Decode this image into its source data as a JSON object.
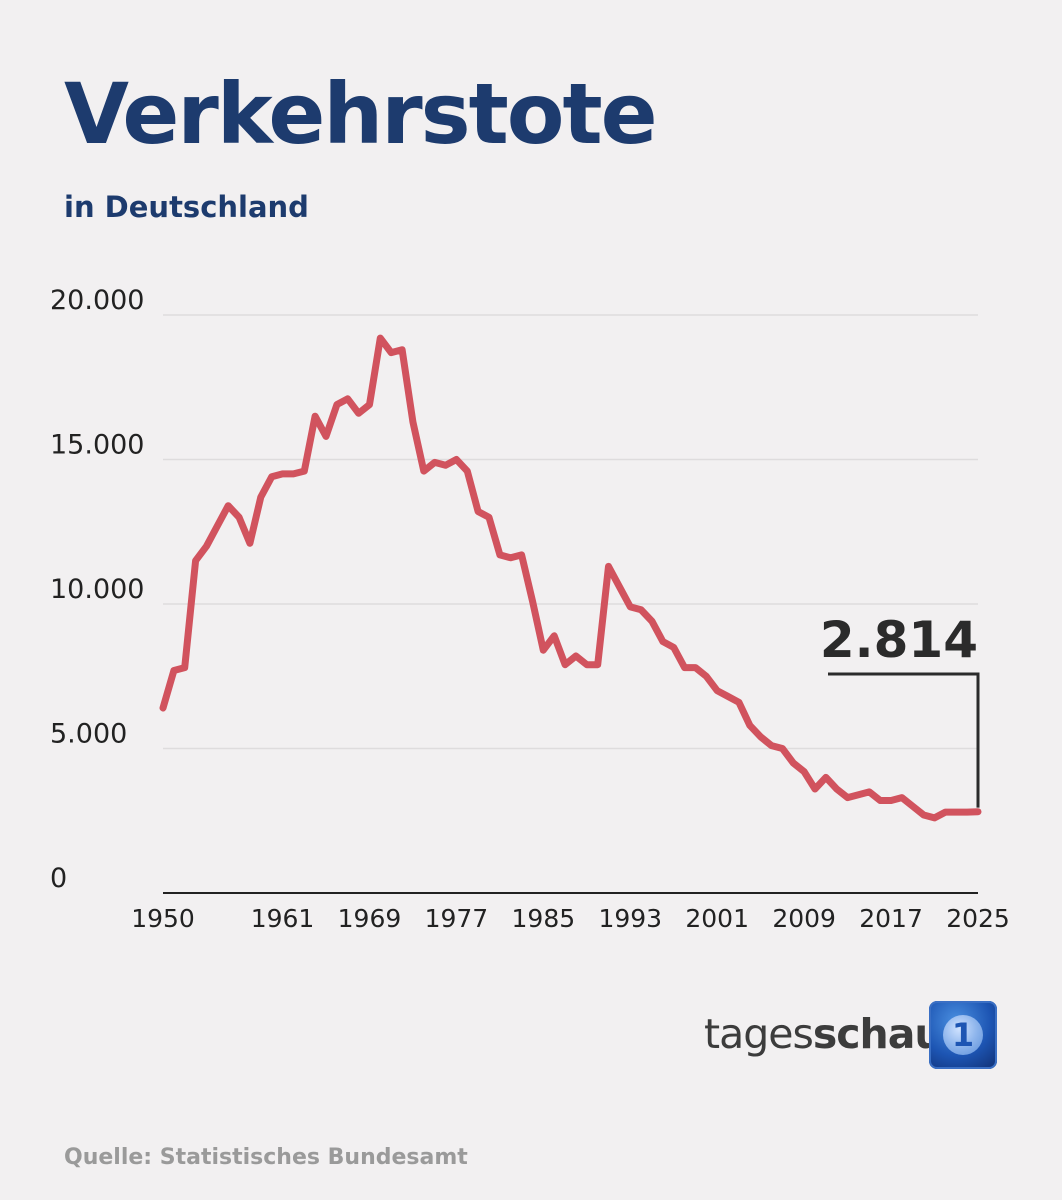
{
  "header": {
    "title": "Verkehrstote",
    "subtitle": "in Deutschland"
  },
  "colors": {
    "line": "#d1535e",
    "title": "#1d3b6e",
    "axis": "#222222",
    "grid": "#dedcdd",
    "annotation": "#2b2b2b"
  },
  "chart_data": {
    "type": "line",
    "title": "Verkehrstote",
    "subtitle": "in Deutschland",
    "xlabel": "",
    "ylabel": "",
    "xlim": [
      1950,
      2025
    ],
    "ylim": [
      0,
      20000
    ],
    "x_ticks": [
      1950,
      1961,
      1969,
      1977,
      1985,
      1993,
      2001,
      2009,
      2017,
      2025
    ],
    "y_ticks": [
      0,
      5000,
      10000,
      15000,
      20000
    ],
    "y_tick_labels": [
      "0",
      "5.000",
      "10.000",
      "15.000",
      "20.000"
    ],
    "grid": "horizontal",
    "x": [
      1950,
      1951,
      1952,
      1953,
      1954,
      1955,
      1956,
      1957,
      1958,
      1959,
      1960,
      1961,
      1962,
      1963,
      1964,
      1965,
      1966,
      1967,
      1968,
      1969,
      1970,
      1971,
      1972,
      1973,
      1974,
      1975,
      1976,
      1977,
      1978,
      1979,
      1980,
      1981,
      1982,
      1983,
      1984,
      1985,
      1986,
      1987,
      1988,
      1989,
      1990,
      1991,
      1992,
      1993,
      1994,
      1995,
      1996,
      1997,
      1998,
      1999,
      2000,
      2001,
      2002,
      2003,
      2004,
      2005,
      2006,
      2007,
      2008,
      2009,
      2010,
      2011,
      2012,
      2013,
      2014,
      2015,
      2016,
      2017,
      2018,
      2019,
      2020,
      2021,
      2022,
      2023,
      2024,
      2025
    ],
    "values": [
      6400,
      7700,
      7800,
      11500,
      12000,
      12700,
      13400,
      13000,
      12100,
      13700,
      14400,
      14500,
      14500,
      14600,
      16500,
      15800,
      16900,
      17100,
      16600,
      16900,
      19200,
      18700,
      18800,
      16300,
      14600,
      14900,
      14800,
      15000,
      14600,
      13200,
      13000,
      11700,
      11600,
      11700,
      10100,
      8400,
      8900,
      7900,
      8200,
      7900,
      7900,
      11300,
      10600,
      9900,
      9800,
      9400,
      8700,
      8500,
      7800,
      7800,
      7500,
      7000,
      6800,
      6600,
      5800,
      5400,
      5100,
      5000,
      4500,
      4200,
      3600,
      4000,
      3600,
      3300,
      3400,
      3500,
      3200,
      3200,
      3300,
      3000,
      2700,
      2600,
      2800,
      2800,
      2800,
      2814
    ],
    "annotation": {
      "label": "2.814",
      "year": 2025,
      "value": 2814
    }
  },
  "branding": {
    "name_regular": "tages",
    "name_bold": "schau",
    "logo_icon": "tagesschau-1-logo-icon",
    "logo_numeral": "1"
  },
  "footer": {
    "source": "Quelle: Statistisches Bundesamt"
  }
}
